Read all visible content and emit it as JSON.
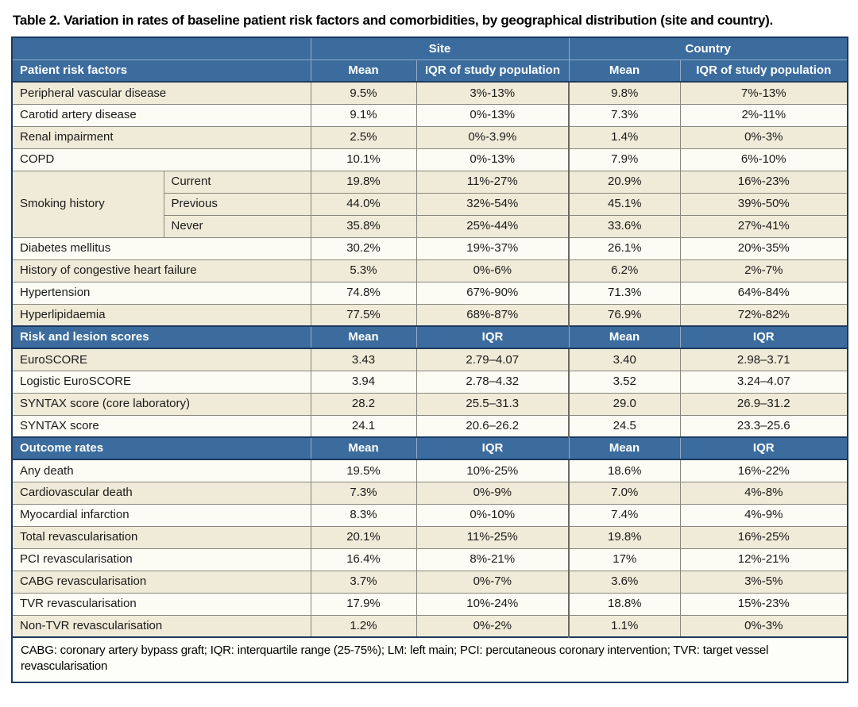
{
  "title": "Table 2. Variation in rates of baseline patient risk factors and comorbidities, by geographical distribution (site and country).",
  "colors": {
    "header_blue": "#3c6c9e",
    "border_navy": "#1b3a5f",
    "row_cream": "#f0ebd8",
    "row_white": "#fcfcf4",
    "grid_gray": "#87877e"
  },
  "header": {
    "site": "Site",
    "country": "Country"
  },
  "sections": [
    {
      "label": "Patient risk factors",
      "col_headers": [
        "Mean",
        "IQR of study population",
        "Mean",
        "IQR of study population"
      ],
      "rows": [
        {
          "label": "Peripheral vascular disease",
          "site_mean": "9.5%",
          "site_iqr": "3%-13%",
          "country_mean": "9.8%",
          "country_iqr": "7%-13%",
          "shade": "cream"
        },
        {
          "label": "Carotid artery disease",
          "site_mean": "9.1%",
          "site_iqr": "0%-13%",
          "country_mean": "7.3%",
          "country_iqr": "2%-11%",
          "shade": "white"
        },
        {
          "label": "Renal impairment",
          "site_mean": "2.5%",
          "site_iqr": "0%-3.9%",
          "country_mean": "1.4%",
          "country_iqr": "0%-3%",
          "shade": "cream"
        },
        {
          "label": "COPD",
          "site_mean": "10.1%",
          "site_iqr": "0%-13%",
          "country_mean": "7.9%",
          "country_iqr": "6%-10%",
          "shade": "white"
        },
        {
          "label": "Smoking history",
          "rowspan": 3,
          "sub": "Current",
          "site_mean": "19.8%",
          "site_iqr": "11%-27%",
          "country_mean": "20.9%",
          "country_iqr": "16%-23%",
          "shade": "cream"
        },
        {
          "sub": "Previous",
          "site_mean": "44.0%",
          "site_iqr": "32%-54%",
          "country_mean": "45.1%",
          "country_iqr": "39%-50%",
          "shade": "cream"
        },
        {
          "sub": "Never",
          "site_mean": "35.8%",
          "site_iqr": "25%-44%",
          "country_mean": "33.6%",
          "country_iqr": "27%-41%",
          "shade": "cream"
        },
        {
          "label": "Diabetes mellitus",
          "site_mean": "30.2%",
          "site_iqr": "19%-37%",
          "country_mean": "26.1%",
          "country_iqr": "20%-35%",
          "shade": "white"
        },
        {
          "label": "History of congestive heart failure",
          "site_mean": "5.3%",
          "site_iqr": "0%-6%",
          "country_mean": "6.2%",
          "country_iqr": "2%-7%",
          "shade": "cream"
        },
        {
          "label": "Hypertension",
          "site_mean": "74.8%",
          "site_iqr": "67%-90%",
          "country_mean": "71.3%",
          "country_iqr": "64%-84%",
          "shade": "white"
        },
        {
          "label": "Hyperlipidaemia",
          "site_mean": "77.5%",
          "site_iqr": "68%-87%",
          "country_mean": "76.9%",
          "country_iqr": "72%-82%",
          "shade": "cream"
        }
      ]
    },
    {
      "label": "Risk and lesion scores",
      "col_headers": [
        "Mean",
        "IQR",
        "Mean",
        "IQR"
      ],
      "rows": [
        {
          "label": "EuroSCORE",
          "site_mean": "3.43",
          "site_iqr": "2.79–4.07",
          "country_mean": "3.40",
          "country_iqr": "2.98–3.71",
          "shade": "cream"
        },
        {
          "label": "Logistic EuroSCORE",
          "site_mean": "3.94",
          "site_iqr": "2.78–4.32",
          "country_mean": "3.52",
          "country_iqr": "3.24–4.07",
          "shade": "white"
        },
        {
          "label": "SYNTAX score (core laboratory)",
          "site_mean": "28.2",
          "site_iqr": "25.5–31.3",
          "country_mean": "29.0",
          "country_iqr": "26.9–31.2",
          "shade": "cream"
        },
        {
          "label": "SYNTAX score",
          "site_mean": "24.1",
          "site_iqr": "20.6–26.2",
          "country_mean": "24.5",
          "country_iqr": "23.3–25.6",
          "shade": "white"
        }
      ]
    },
    {
      "label": "Outcome rates",
      "col_headers": [
        "Mean",
        "IQR",
        "Mean",
        "IQR"
      ],
      "rows": [
        {
          "label": "Any death",
          "site_mean": "19.5%",
          "site_iqr": "10%-25%",
          "country_mean": "18.6%",
          "country_iqr": "16%-22%",
          "shade": "white"
        },
        {
          "label": "Cardiovascular death",
          "site_mean": "7.3%",
          "site_iqr": "0%-9%",
          "country_mean": "7.0%",
          "country_iqr": "4%-8%",
          "shade": "cream"
        },
        {
          "label": "Myocardial infarction",
          "site_mean": "8.3%",
          "site_iqr": "0%-10%",
          "country_mean": "7.4%",
          "country_iqr": "4%-9%",
          "shade": "white"
        },
        {
          "label": "Total revascularisation",
          "site_mean": "20.1%",
          "site_iqr": "11%-25%",
          "country_mean": "19.8%",
          "country_iqr": "16%-25%",
          "shade": "cream"
        },
        {
          "label": "PCI revascularisation",
          "site_mean": "16.4%",
          "site_iqr": "8%-21%",
          "country_mean": "17%",
          "country_iqr": "12%-21%",
          "shade": "white"
        },
        {
          "label": "CABG revascularisation",
          "site_mean": "3.7%",
          "site_iqr": "0%-7%",
          "country_mean": "3.6%",
          "country_iqr": "3%-5%",
          "shade": "cream"
        },
        {
          "label": "TVR revascularisation",
          "site_mean": "17.9%",
          "site_iqr": "10%-24%",
          "country_mean": "18.8%",
          "country_iqr": "15%-23%",
          "shade": "white"
        },
        {
          "label": "Non-TVR revascularisation",
          "site_mean": "1.2%",
          "site_iqr": "0%-2%",
          "country_mean": "1.1%",
          "country_iqr": "0%-3%",
          "shade": "cream"
        }
      ]
    }
  ],
  "footnote": "CABG: coronary artery bypass graft; IQR: interquartile range (25-75%); LM: left main; PCI: percutaneous coronary intervention; TVR: target vessel revascularisation"
}
